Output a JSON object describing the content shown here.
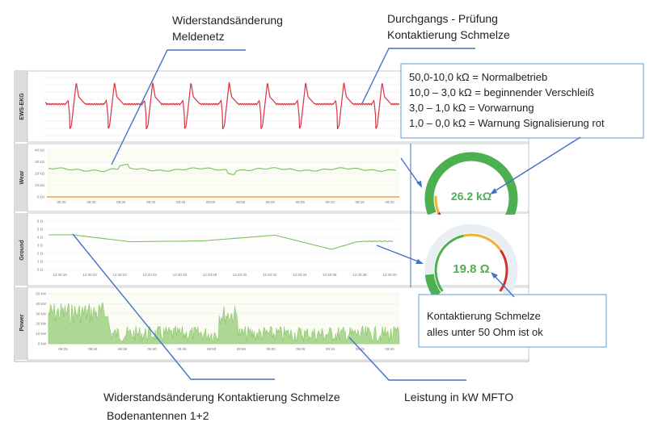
{
  "annotations": {
    "resistance_change_net": [
      "Widerstandsänderung",
      "Meldenetz"
    ],
    "continuity_check": [
      "Durchgangs - Prüfung",
      "Kontaktierung Schmelze"
    ],
    "resistance_change_ground": [
      "Widerstandsänderung Kontaktierung Schmelze",
      "Bodenantennen 1+2"
    ],
    "power": "Leistung in kW MFTO"
  },
  "legend_box": {
    "lines": [
      "50,0-10,0 kΩ = Normalbetrieb",
      "10,0 – 3,0 kΩ = beginnender Verschleiß",
      "3,0 – 1,0 kΩ  = Vorwarnung",
      "1,0 – 0,0 kΩ  = Warnung Signalisierung rot"
    ]
  },
  "ground_box": {
    "lines": [
      "Kontaktierung Schmelze",
      "alles unter 50 Ohm ist ok"
    ]
  },
  "panels": [
    {
      "label": "EWS-EKG"
    },
    {
      "label": "Wear",
      "yticks": [
        "40 kΩ",
        "30 kΩ",
        "20 kΩ",
        "10 kΩ",
        "0 kΩ"
      ],
      "xticks": [
        "08:20",
        "08:25",
        "08:30",
        "08:40",
        "08:45",
        "08:50",
        "08:55",
        "09:00",
        "09:05",
        "09:10",
        "09:15",
        "09:20"
      ]
    },
    {
      "label": "Ground",
      "yticks": [
        "6 Ω",
        "5 Ω",
        "4 Ω",
        "3 Ω",
        "2 Ω",
        "1 Ω",
        "0 Ω"
      ],
      "xticks": [
        "12:40:16",
        "12:40:20",
        "12:40:22",
        "12:40:24",
        "12:40:26",
        "12:40:28",
        "12:40:30",
        "12:40:32",
        "12:40:34",
        "12:40:36",
        "12:40:38",
        "12:40:40"
      ]
    },
    {
      "label": "Power",
      "yticks": [
        "50 kW",
        "40 kW",
        "30 kW",
        "20 kW",
        "10 kW",
        "0 kW"
      ],
      "xticks": [
        "08:25",
        "08:30",
        "08:35",
        "08:40",
        "08:45",
        "08:50",
        "08:55",
        "09:00",
        "09:05",
        "09:10",
        "09:15",
        "09:20"
      ]
    }
  ],
  "gauges": {
    "wear": {
      "value_text": "26.2 kΩ",
      "fraction": 0.52,
      "color": "#4caf50"
    },
    "ground": {
      "value_text": "19.8 Ω",
      "fraction": 0.12,
      "color": "#4caf50"
    }
  },
  "colors": {
    "ekg": "#d9333f",
    "series": "#7cbf5a",
    "power": "#7cbf5a",
    "callout_line": "#4472c4",
    "gauge_red": "#d32f2f",
    "gauge_yellow": "#f2b134",
    "gauge_green": "#4caf50",
    "gauge_track": "#e9eef2"
  }
}
